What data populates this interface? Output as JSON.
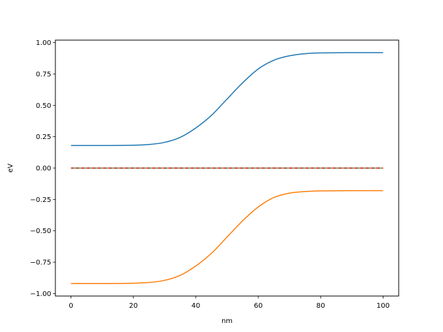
{
  "chart_data": {
    "type": "line",
    "title": "",
    "xlabel": "nm",
    "ylabel": "eV",
    "xlim": [
      -5,
      105
    ],
    "ylim": [
      -1.02,
      1.02
    ],
    "xticks": [
      0,
      20,
      40,
      60,
      80,
      100
    ],
    "xtick_labels": [
      "0",
      "20",
      "40",
      "60",
      "80",
      "100"
    ],
    "yticks": [
      -1.0,
      -0.75,
      -0.5,
      -0.25,
      0.0,
      0.25,
      0.5,
      0.75,
      1.0
    ],
    "ytick_labels": [
      "−1.00",
      "−0.75",
      "−0.50",
      "−0.25",
      "0.00",
      "0.25",
      "0.50",
      "0.75",
      "1.00"
    ],
    "grid": false,
    "x": [
      0,
      10,
      20,
      25,
      30,
      35,
      40,
      45,
      50,
      55,
      60,
      65,
      70,
      75,
      80,
      90,
      100
    ],
    "series": [
      {
        "color": "#1f77b4",
        "style": "solid",
        "values": [
          0.18,
          0.18,
          0.182,
          0.188,
          0.205,
          0.245,
          0.32,
          0.42,
          0.55,
          0.68,
          0.79,
          0.86,
          0.895,
          0.912,
          0.918,
          0.92,
          0.92
        ]
      },
      {
        "color": "#ff7f0e",
        "style": "solid",
        "values": [
          -0.92,
          -0.92,
          -0.918,
          -0.912,
          -0.895,
          -0.855,
          -0.78,
          -0.68,
          -0.55,
          -0.42,
          -0.31,
          -0.235,
          -0.2,
          -0.187,
          -0.182,
          -0.18,
          -0.18
        ]
      },
      {
        "color": "#2ca02c",
        "style": "dashed",
        "values": [
          0,
          0,
          0,
          0,
          0,
          0,
          0,
          0,
          0,
          0,
          0,
          0,
          0,
          0,
          0,
          0,
          0
        ]
      },
      {
        "color": "#d62728",
        "style": "dashed",
        "values": [
          0,
          0,
          0,
          0,
          0,
          0,
          0,
          0,
          0,
          0,
          0,
          0,
          0,
          0,
          0,
          0,
          0
        ]
      }
    ]
  }
}
